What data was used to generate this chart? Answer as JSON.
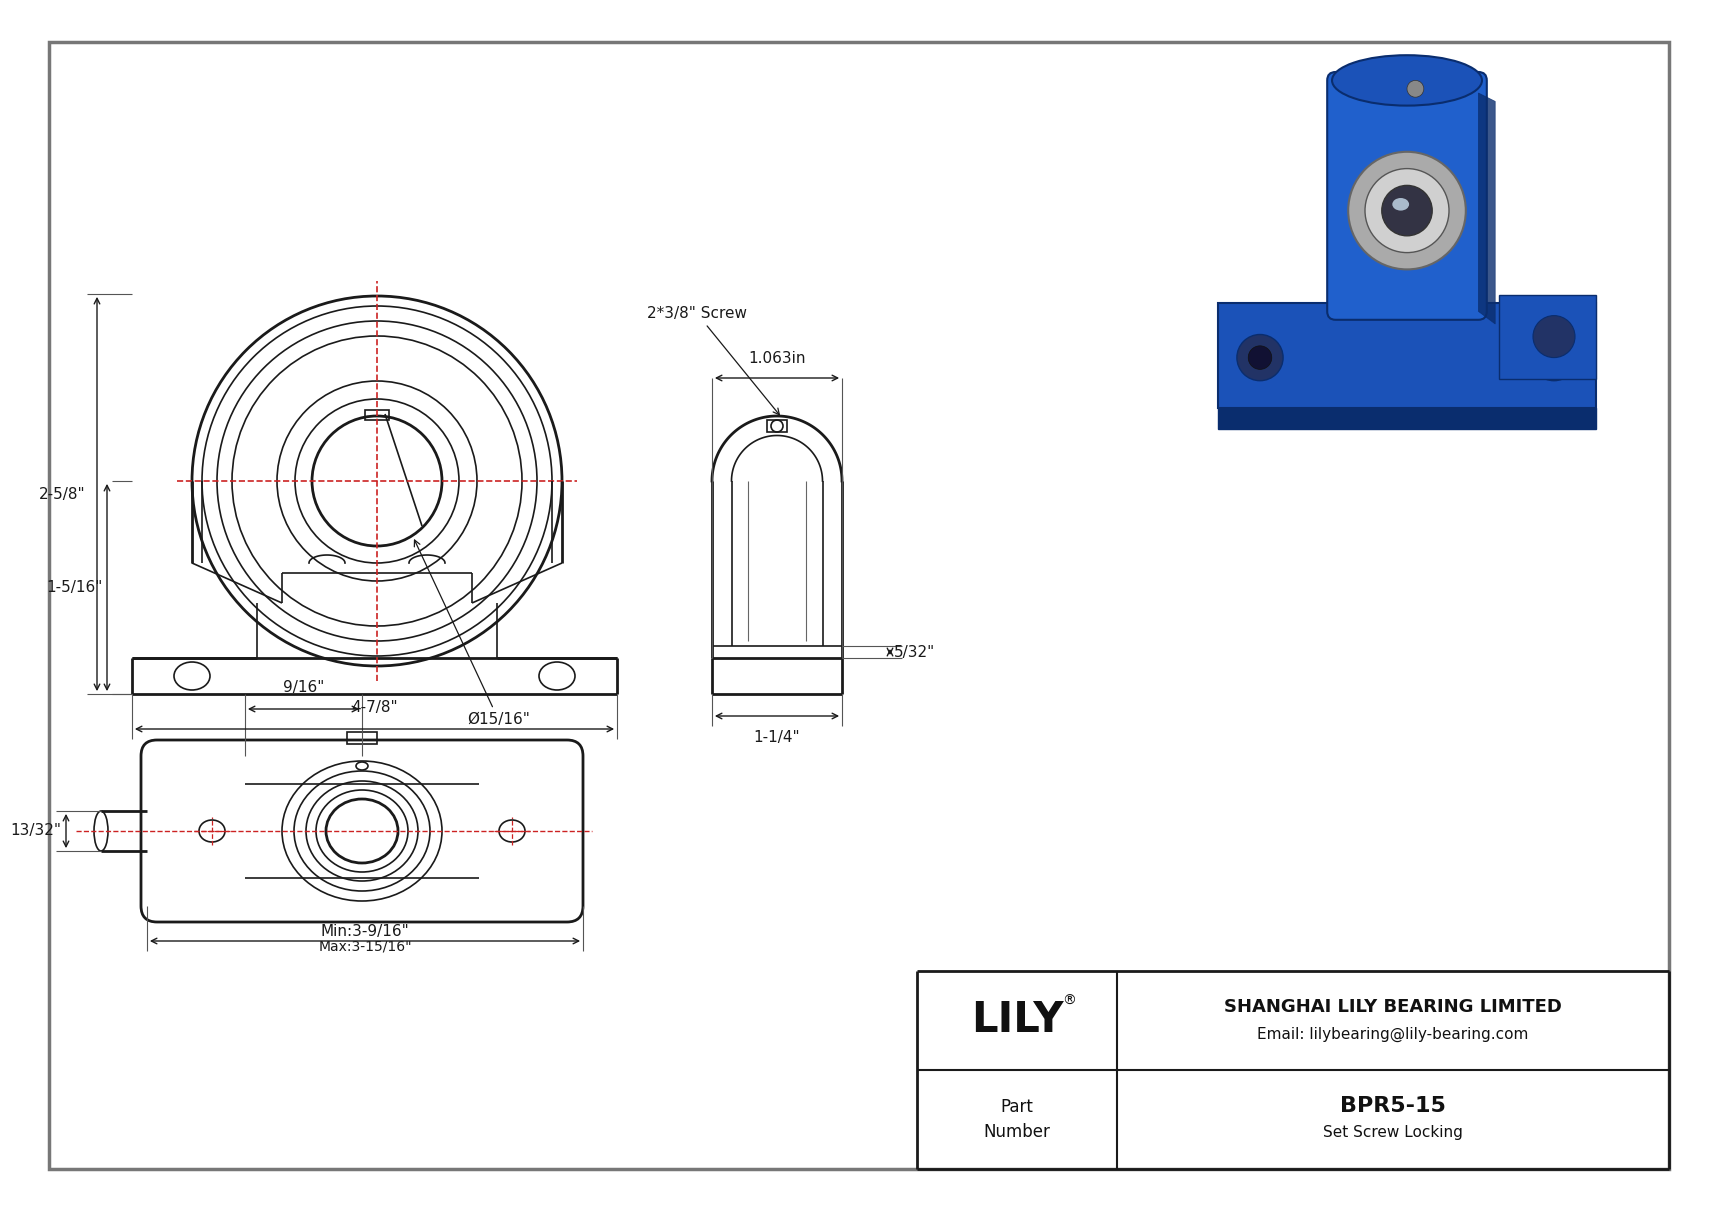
{
  "bg_color": "#ffffff",
  "line_color": "#1a1a1a",
  "center_line_color": "#cc2222",
  "dim_color": "#1a1a1a",
  "front_dims": {
    "width": "4-7/8\"",
    "height": "2-5/8\"",
    "center_h": "1-5/16\"",
    "bore": "Ø15/16\"",
    "screw": "2*3/8\" Screw"
  },
  "side_dims": {
    "top_w": "1.063in",
    "base_w": "1-1/4\"",
    "slot": "5/32\""
  },
  "top_dims": {
    "min_w": "Min:3-9/16\"",
    "max_w": "Max:3-15/16\"",
    "hole_d": "9/16\"",
    "shaft_d": "13/32\""
  },
  "title": {
    "company": "SHANGHAI LILY BEARING LIMITED",
    "email": "Email: lilybearing@lily-bearing.com",
    "part_number": "BPR5-15",
    "description": "Set Screw Locking",
    "logo": "LILY"
  },
  "blue": "#1b52b8",
  "blue_dark": "#0a2d6e",
  "blue_mid": "#2060cc",
  "silver": "#aaaaaa",
  "silver_light": "#d0d0d0",
  "chrome": "#c8c8c8"
}
